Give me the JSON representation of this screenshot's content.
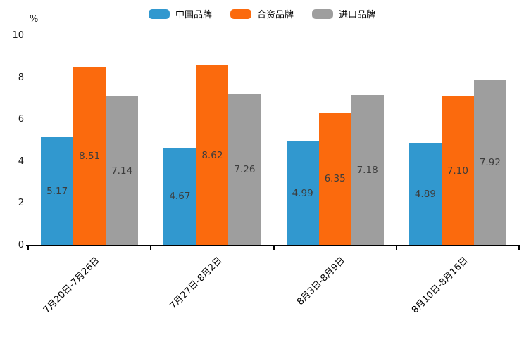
{
  "chart_data": {
    "type": "bar",
    "title": "",
    "unit_label": "%",
    "categories": [
      "7月20日-7月26日",
      "7月27日-8月2日",
      "8月3日-8月9日",
      "8月10日-8月16日"
    ],
    "series": [
      {
        "name": "中国品牌",
        "color": "#3198CF",
        "values": [
          5.17,
          4.67,
          4.99,
          4.89
        ]
      },
      {
        "name": "合资品牌",
        "color": "#FB6A0D",
        "values": [
          8.51,
          8.62,
          6.35,
          7.1
        ]
      },
      {
        "name": "进口品牌",
        "color": "#9E9E9E",
        "values": [
          7.14,
          7.26,
          7.18,
          7.92
        ]
      }
    ],
    "ylim": [
      0,
      10
    ],
    "yticks": [
      0,
      2,
      4,
      6,
      8,
      10
    ],
    "grid": false,
    "legend_position": "top",
    "value_label_style": "inside-center, 2 decimals",
    "x_label_rotation_deg": 45,
    "colors": {
      "axis": "#000000",
      "value_text": "#3c3c3c",
      "tick_text": "#1a1a1a"
    }
  }
}
